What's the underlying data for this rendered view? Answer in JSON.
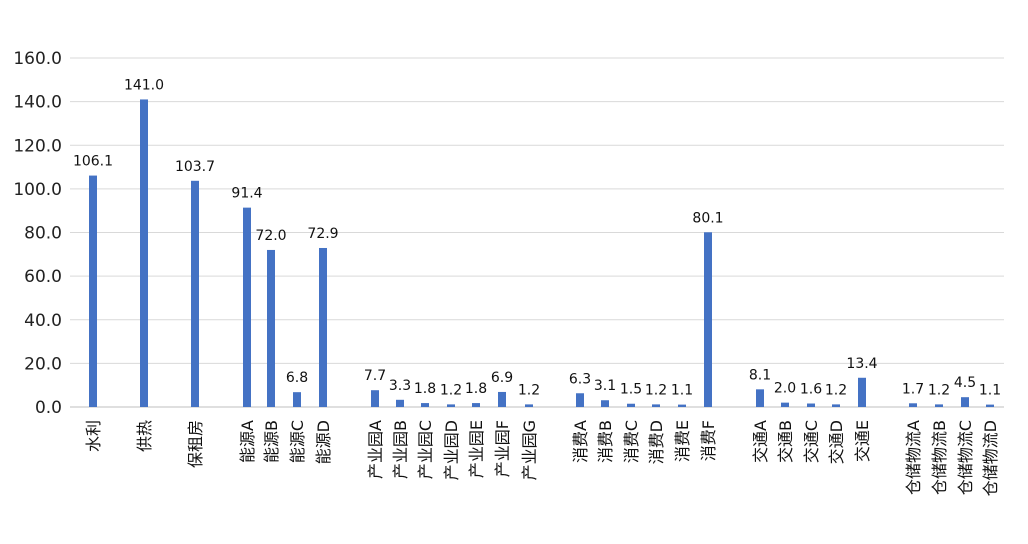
{
  "chart_data": {
    "type": "bar",
    "title": "",
    "xlabel": "",
    "ylabel": "",
    "ylim": [
      0,
      160
    ],
    "y_ticks": [
      "0.0",
      "20.0",
      "40.0",
      "60.0",
      "80.0",
      "100.0",
      "120.0",
      "140.0",
      "160.0"
    ],
    "grid": true,
    "bar_color": "#4472C4",
    "categories": [
      "水利",
      "供热",
      "保租房",
      "能源A",
      "能源B",
      "能源C",
      "能源D",
      "产业园A",
      "产业园B",
      "产业园C",
      "产业园D",
      "产业园E",
      "产业园F",
      "产业园G",
      "消费A",
      "消费B",
      "消费C",
      "消费D",
      "消费E",
      "消费F",
      "交通A",
      "交通B",
      "交通C",
      "交通D",
      "交通E",
      "仓储物流A",
      "仓储物流B",
      "仓储物流C",
      "仓储物流D"
    ],
    "values": [
      106.1,
      141.0,
      103.7,
      91.4,
      72.0,
      6.8,
      72.9,
      7.7,
      3.3,
      1.8,
      1.2,
      1.8,
      6.9,
      1.2,
      6.3,
      3.1,
      1.5,
      1.2,
      1.1,
      80.1,
      8.1,
      2.0,
      1.6,
      1.2,
      13.4,
      1.7,
      1.2,
      4.5,
      1.1
    ],
    "data_labels": [
      "106.1",
      "141.0",
      "103.7",
      "91.4",
      "72.0",
      "6.8",
      "72.9",
      "7.7",
      "3.3",
      "1.8",
      "1.2",
      "1.8",
      "6.9",
      "1.2",
      "6.3",
      "3.1",
      "1.5",
      "1.2",
      "1.1",
      "80.1",
      "8.1",
      "2.0",
      "1.6",
      "1.2",
      "13.4",
      "1.7",
      "1.2",
      "4.5",
      "1.1"
    ]
  }
}
